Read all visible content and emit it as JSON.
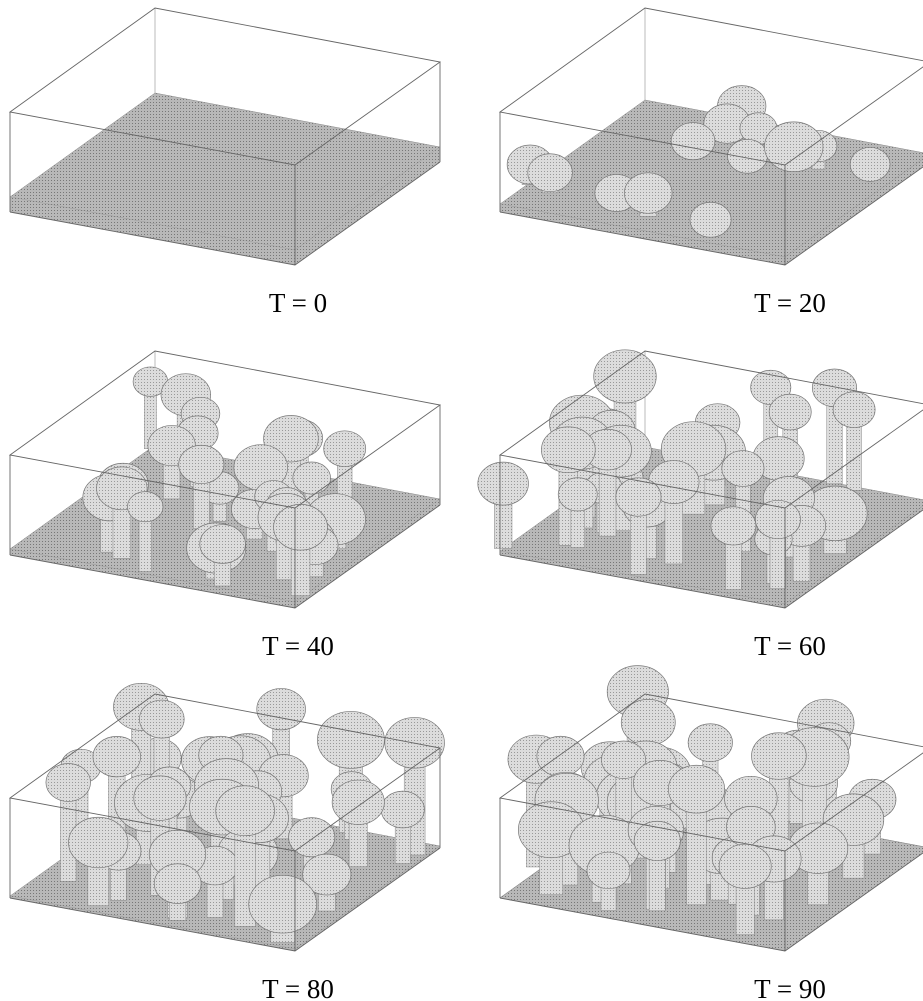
{
  "panels": [
    {
      "caption": "T = 0"
    },
    {
      "caption": "T = 20"
    },
    {
      "caption": "T = 40"
    },
    {
      "caption": "T = 60"
    },
    {
      "caption": "T = 80"
    },
    {
      "caption": "T = 90"
    }
  ]
}
